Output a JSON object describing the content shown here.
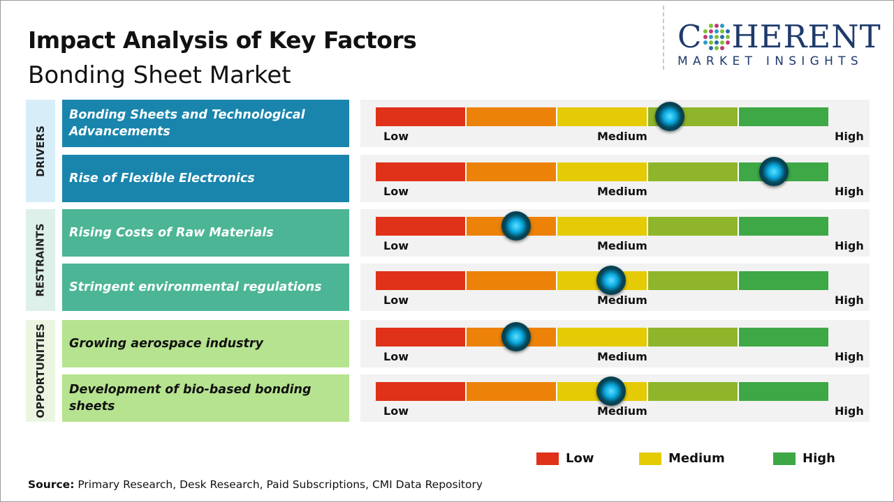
{
  "header": {
    "title": "Impact Analysis of Key Factors",
    "subtitle": "Bonding Sheet Market"
  },
  "logo": {
    "main_left": "C",
    "main_right": "HERENT",
    "sub": "MARKET INSIGHTS"
  },
  "colors": {
    "low": "#e03119",
    "low_medium": "#ec8207",
    "medium": "#e5cb05",
    "medium_high": "#8fb52a",
    "high": "#3da845",
    "drivers": "#1985ad",
    "drivers_bg": "#d7eef8",
    "restraints": "#4bb596",
    "restraints_bg": "#ddf0ea",
    "opportunities": "#b6e38f",
    "opportunities_bg": "#ebf5e1",
    "knob": "#0aa9e0"
  },
  "chart_data": {
    "type": "gauge",
    "scale_labels": [
      "Low",
      "Medium",
      "High"
    ],
    "scale_range": [
      0,
      100
    ],
    "categories": [
      {
        "name": "DRIVERS",
        "factors": [
          {
            "label": "Bonding Sheets and Technological Advancements",
            "impact": 65
          },
          {
            "label": "Rise of Flexible Electronics",
            "impact": 88
          }
        ]
      },
      {
        "name": "RESTRAINTS",
        "factors": [
          {
            "label": "Rising Costs of Raw Materials",
            "impact": 31
          },
          {
            "label": "Stringent environmental regulations",
            "impact": 52
          }
        ]
      },
      {
        "name": "OPPORTUNITIES",
        "factors": [
          {
            "label": "Growing aerospace industry",
            "impact": 31
          },
          {
            "label": "Development of bio-based bonding sheets",
            "impact": 52
          }
        ]
      }
    ],
    "legend": [
      "Low",
      "Medium",
      "High"
    ]
  },
  "source": {
    "label": "Source:",
    "text": " Primary Research, Desk Research, Paid Subscriptions, CMI Data Repository"
  }
}
